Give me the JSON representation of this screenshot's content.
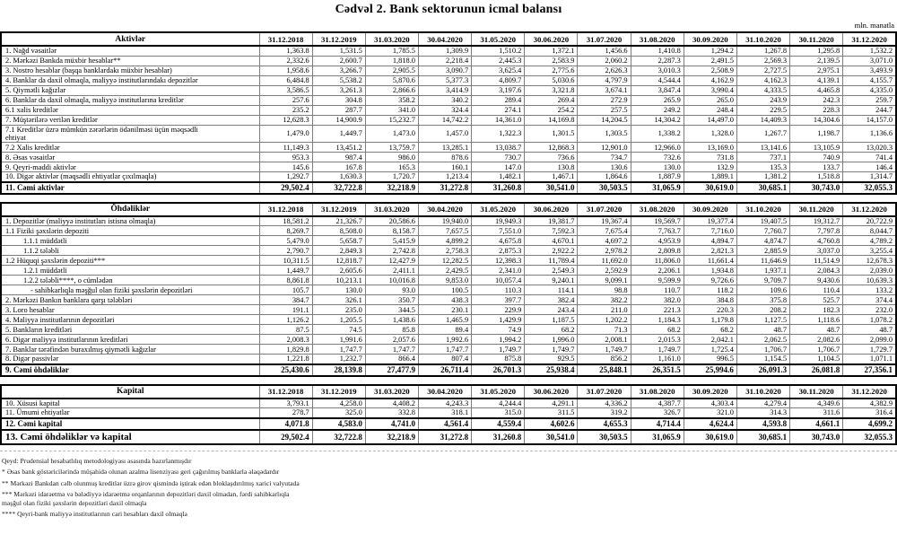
{
  "title": "Cədvəl 2. Bank sektorunun icmal balansı",
  "unit_label": "mln. manatla",
  "columns": [
    "31.12.2018",
    "31.12.2019",
    "31.03.2020",
    "30.04.2020",
    "31.05.2020",
    "30.06.2020",
    "31.07.2020",
    "31.08.2020",
    "30.09.2020",
    "31.10.2020",
    "30.11.2020",
    "31.12.2020"
  ],
  "sections": [
    {
      "name": "Aktivlər",
      "rows": [
        {
          "label": "1. Nağd vəsaitlər",
          "indent": 0,
          "values": [
            "1,363.8",
            "1,531.5",
            "1,785.5",
            "1,309.9",
            "1,510.2",
            "1,372.1",
            "1,456.6",
            "1,410.8",
            "1,294.2",
            "1,267.8",
            "1,295.8",
            "1,532.2"
          ]
        },
        {
          "label": "2. Mərkəzi Bankda müxbir hesablar**",
          "indent": 0,
          "values": [
            "2,332.6",
            "2,600.7",
            "1,818.0",
            "2,218.4",
            "2,445.3",
            "2,583.9",
            "2,060.2",
            "2,287.3",
            "2,491.5",
            "2,569.3",
            "2,139.5",
            "3,071.0"
          ]
        },
        {
          "label": "3. Nostro hesablar (başqa banklardakı müxbir hesablar)",
          "indent": 0,
          "values": [
            "1,958.6",
            "3,266.7",
            "2,905.5",
            "3,090.7",
            "3,625.4",
            "2,775.6",
            "2,626.3",
            "3,010.3",
            "2,508.9",
            "2,727.5",
            "2,975.1",
            "3,493.9"
          ]
        },
        {
          "label": "4. Banklar da daxil olmaqla, maliyyə institutlarındakı depozitlər",
          "indent": 0,
          "values": [
            "6,484.8",
            "5,538.2",
            "5,870.6",
            "5,377.3",
            "4,809.7",
            "5,030.6",
            "4,797.9",
            "4,544.4",
            "4,162.9",
            "4,162.3",
            "4,139.1",
            "4,155.7"
          ]
        },
        {
          "label": "5. Qiymətli kağızlar",
          "indent": 0,
          "values": [
            "3,586.5",
            "3,261.3",
            "2,866.6",
            "3,414.9",
            "3,197.6",
            "3,321.8",
            "3,674.1",
            "3,847.4",
            "3,990.4",
            "4,333.5",
            "4,465.8",
            "4,335.0"
          ]
        },
        {
          "label": "6. Banklar da daxil olmaqla, maliyyə institutlarına kreditlər",
          "indent": 0,
          "values": [
            "257.6",
            "304.8",
            "358.2",
            "340.2",
            "289.4",
            "269.4",
            "272.9",
            "265.9",
            "265.0",
            "243.9",
            "242.3",
            "259.7"
          ]
        },
        {
          "label": "6.1 xalis kreditlər",
          "indent": 0,
          "values": [
            "235.2",
            "287.7",
            "341.0",
            "324.4",
            "274.1",
            "254.2",
            "257.5",
            "249.2",
            "248.4",
            "229.5",
            "228.3",
            "244.7"
          ]
        },
        {
          "label": "7. Müştərilərə verilən kreditlər",
          "indent": 0,
          "values": [
            "12,628.3",
            "14,900.9",
            "15,232.7",
            "14,742.2",
            "14,361.0",
            "14,169.8",
            "14,204.5",
            "14,304.2",
            "14,497.0",
            "14,409.3",
            "14,304.6",
            "14,157.0"
          ]
        },
        {
          "label": "7.1 Kreditlər üzrə mümkün zərərlərin ödənilməsi üçün məqsədli\nehtiyat",
          "indent": 0,
          "values": [
            "1,479.0",
            "1,449.7",
            "1,473.0",
            "1,457.0",
            "1,322.3",
            "1,301.5",
            "1,303.5",
            "1,338.2",
            "1,328.0",
            "1,267.7",
            "1,198.7",
            "1,136.6"
          ]
        },
        {
          "label": "7.2 Xalis kreditlər",
          "indent": 0,
          "values": [
            "11,149.3",
            "13,451.2",
            "13,759.7",
            "13,285.1",
            "13,038.7",
            "12,868.3",
            "12,901.0",
            "12,966.0",
            "13,169.0",
            "13,141.6",
            "13,105.9",
            "13,020.3"
          ]
        },
        {
          "label": "8.  Əsas vəsaitlər",
          "indent": 0,
          "values": [
            "953.3",
            "987.4",
            "986.0",
            "878.6",
            "730.7",
            "736.6",
            "734.7",
            "732.6",
            "731.8",
            "737.1",
            "740.9",
            "741.4"
          ]
        },
        {
          "label": "9. Qeyri-maddi aktivlər",
          "indent": 0,
          "values": [
            "145.6",
            "167.8",
            "165.3",
            "160.1",
            "147.0",
            "130.8",
            "130.6",
            "130.0",
            "132.9",
            "135.3",
            "133.7",
            "146.4"
          ]
        },
        {
          "label": "10. Digər aktivlər (məqsədli ehtiyatlar çıxılmaqla)",
          "indent": 0,
          "values": [
            "1,292.7",
            "1,630.3",
            "1,720.7",
            "1,213.4",
            "1,482.1",
            "1,467.1",
            "1,864.6",
            "1,887.9",
            "1,889.1",
            "1,381.2",
            "1,518.8",
            "1,314.7"
          ]
        },
        {
          "label": "11. Cəmi aktivlər",
          "indent": 0,
          "style": "total",
          "values": [
            "29,502.4",
            "32,722.8",
            "32,218.9",
            "31,272.8",
            "31,260.8",
            "30,541.0",
            "30,503.5",
            "31,065.9",
            "30,619.0",
            "30,685.1",
            "30,743.0",
            "32,055.3"
          ]
        }
      ]
    },
    {
      "name": "Öhdəliklər",
      "rows": [
        {
          "label": "1. Depozitlər (maliyyə institutları istisna olmaqla)",
          "indent": 0,
          "values": [
            "18,581.2",
            "21,326.7",
            "20,586.6",
            "19,940.0",
            "19,949.3",
            "19,381.7",
            "19,367.4",
            "19,569.7",
            "19,377.4",
            "19,407.5",
            "19,312.7",
            "20,722.9"
          ]
        },
        {
          "label": "1.1 Fiziki şəxslərin depoziti",
          "indent": 0,
          "values": [
            "8,269.7",
            "8,508.0",
            "8,158.7",
            "7,657.5",
            "7,551.0",
            "7,592.3",
            "7,675.4",
            "7,763.7",
            "7,716.0",
            "7,760.7",
            "7,797.8",
            "8,044.7"
          ]
        },
        {
          "label": "1.1.1 müddətli",
          "indent": 1,
          "values": [
            "5,479.0",
            "5,658.7",
            "5,415.9",
            "4,899.2",
            "4,675.8",
            "4,670.1",
            "4,697.2",
            "4,953.9",
            "4,894.7",
            "4,874.7",
            "4,760.8",
            "4,789.2"
          ]
        },
        {
          "label": "1.1.2 tələbli",
          "indent": 1,
          "values": [
            "2,790.7",
            "2,849.3",
            "2,742.8",
            "2,758.3",
            "2,875.3",
            "2,922.2",
            "2,978.2",
            "2,809.8",
            "2,821.3",
            "2,885.9",
            "3,037.0",
            "3,255.4"
          ]
        },
        {
          "label": "1.2 Hüquqi şəxslərin depoziti***",
          "indent": 0,
          "values": [
            "10,311.5",
            "12,818.7",
            "12,427.9",
            "12,282.5",
            "12,398.3",
            "11,789.4",
            "11,692.0",
            "11,806.0",
            "11,661.4",
            "11,646.9",
            "11,514.9",
            "12,678.3"
          ]
        },
        {
          "label": "1.2.1 müddətli",
          "indent": 1,
          "values": [
            "1,449.7",
            "2,605.6",
            "2,411.1",
            "2,429.5",
            "2,341.0",
            "2,549.3",
            "2,592.9",
            "2,206.1",
            "1,934.8",
            "1,937.1",
            "2,084.3",
            "2,039.0"
          ]
        },
        {
          "label": "1.2.2 tələbli****, o cümlədən",
          "indent": 1,
          "values": [
            "8,861.8",
            "10,213.1",
            "10,016.8",
            "9,853.0",
            "10,057.4",
            "9,240.1",
            "9,099.1",
            "9,599.9",
            "9,726.6",
            "9,709.7",
            "9,430.6",
            "10,639.3"
          ]
        },
        {
          "label": "- sahibkarlıqla məşğul olan fiziki şəxslərin depozitləri",
          "indent": 2,
          "values": [
            "105.7",
            "130.0",
            "93.0",
            "100.5",
            "110.3",
            "114.1",
            "98.8",
            "110.7",
            "118.2",
            "109.6",
            "110.4",
            "133.2"
          ]
        },
        {
          "label": "2. Mərkəzi Bankın banklara qarşı tələbləri",
          "indent": 0,
          "values": [
            "384.7",
            "326.1",
            "350.7",
            "438.3",
            "397.7",
            "382.4",
            "382.2",
            "382.0",
            "384.8",
            "375.8",
            "525.7",
            "374.4"
          ]
        },
        {
          "label": "3. Loro hesablar",
          "indent": 0,
          "values": [
            "191.1",
            "235.0",
            "344.5",
            "230.1",
            "229.9",
            "243.4",
            "211.0",
            "221.3",
            "220.3",
            "208.2",
            "182.3",
            "232.0"
          ]
        },
        {
          "label": "4. Maliyyə institutlarının  depozitləri",
          "indent": 0,
          "values": [
            "1,126.2",
            "1,205.5",
            "1,438.6",
            "1,465.9",
            "1,429.9",
            "1,187.5",
            "1,202.2",
            "1,184.3",
            "1,179.8",
            "1,127.5",
            "1,118.6",
            "1,078.2"
          ]
        },
        {
          "label": "5. Bankların kreditləri",
          "indent": 0,
          "values": [
            "87.5",
            "74.5",
            "85.8",
            "89.4",
            "74.9",
            "68.2",
            "71.3",
            "68.2",
            "68.2",
            "48.7",
            "48.7",
            "48.7"
          ]
        },
        {
          "label": "6. Digər maliyyə institutlarının kreditləri",
          "indent": 0,
          "values": [
            "2,008.3",
            "1,991.6",
            "2,057.6",
            "1,992.6",
            "1,994.2",
            "1,996.0",
            "2,008.1",
            "2,015.3",
            "2,042.1",
            "2,062.5",
            "2,082.6",
            "2,099.0"
          ]
        },
        {
          "label": "7. Banklar tərəfindən buraxılmış qiymətli kağızlar",
          "indent": 0,
          "values": [
            "1,829.8",
            "1,747.7",
            "1,747.7",
            "1,747.7",
            "1,749.7",
            "1,749.7",
            "1,749.7",
            "1,749.7",
            "1,725.4",
            "1,706.7",
            "1,706.7",
            "1,729.7"
          ]
        },
        {
          "label": "8. Digər passivlər",
          "indent": 0,
          "values": [
            "1,221.8",
            "1,232.7",
            "866.4",
            "807.4",
            "875.8",
            "929.5",
            "856.2",
            "1,161.0",
            "996.5",
            "1,154.5",
            "1,104.5",
            "1,071.1"
          ]
        },
        {
          "label": "9. Cəmi öhdəliklər",
          "indent": 0,
          "style": "total",
          "values": [
            "25,430.6",
            "28,139.8",
            "27,477.9",
            "26,711.4",
            "26,701.3",
            "25,938.4",
            "25,848.1",
            "26,351.5",
            "25,994.6",
            "26,091.3",
            "26,081.8",
            "27,356.1"
          ]
        }
      ]
    },
    {
      "name": "Kapital",
      "rows": [
        {
          "label": "10. Xüsusi kapital",
          "indent": 0,
          "values": [
            "3,793.1",
            "4,258.0",
            "4,408.2",
            "4,243.3",
            "4,244.4",
            "4,291.1",
            "4,336.2",
            "4,387.7",
            "4,303.4",
            "4,279.4",
            "4,349.6",
            "4,382.9"
          ]
        },
        {
          "label": "11. Ümumi ehtiyatlar",
          "indent": 0,
          "values": [
            "278.7",
            "325.0",
            "332.8",
            "318.1",
            "315.0",
            "311.5",
            "319.2",
            "326.7",
            "321.0",
            "314.3",
            "311.6",
            "316.4"
          ]
        },
        {
          "label": "12. Cəmi kapital",
          "indent": 0,
          "style": "total",
          "values": [
            "4,071.8",
            "4,583.0",
            "4,741.0",
            "4,561.4",
            "4,559.4",
            "4,602.6",
            "4,655.3",
            "4,714.4",
            "4,624.4",
            "4,593.8",
            "4,661.1",
            "4,699.2"
          ]
        },
        {
          "label": "13. Cəmi öhdəliklər və kapital",
          "indent": 0,
          "style": "grand",
          "values": [
            "29,502.4",
            "32,722.8",
            "32,218.9",
            "31,272.8",
            "31,260.8",
            "30,541.0",
            "30,503.5",
            "31,065.9",
            "30,619.0",
            "30,685.1",
            "30,743.0",
            "32,055.3"
          ]
        }
      ]
    }
  ],
  "footnotes": [
    "Qeyd: Prudensial hesabatlılıq metodologiyası əsasında hazırlanmışdır",
    "* Əsas bank göstəricilərində müşahidə olunan azalma lisenziyası geri çağırılmış banklarla əlaqədardır",
    "** Mərkəzi Bankdan cəlb olunmuş kreditlər üzrə girov qismində iştirak edən bloklaşdırılmış xarici valyutada",
    "*** Mərkəzi idarəetmə və bələdiyyə idarəetmə orqanlarının depozitləri daxil olmadan, fərdi sahibkarlıqla\nməşğul olan fiziki şəxslərin depozitləri daxil olmaqla",
    "**** Qeyri-bank maliyyə institutlarının cari hesabları daxil olmaqla"
  ]
}
